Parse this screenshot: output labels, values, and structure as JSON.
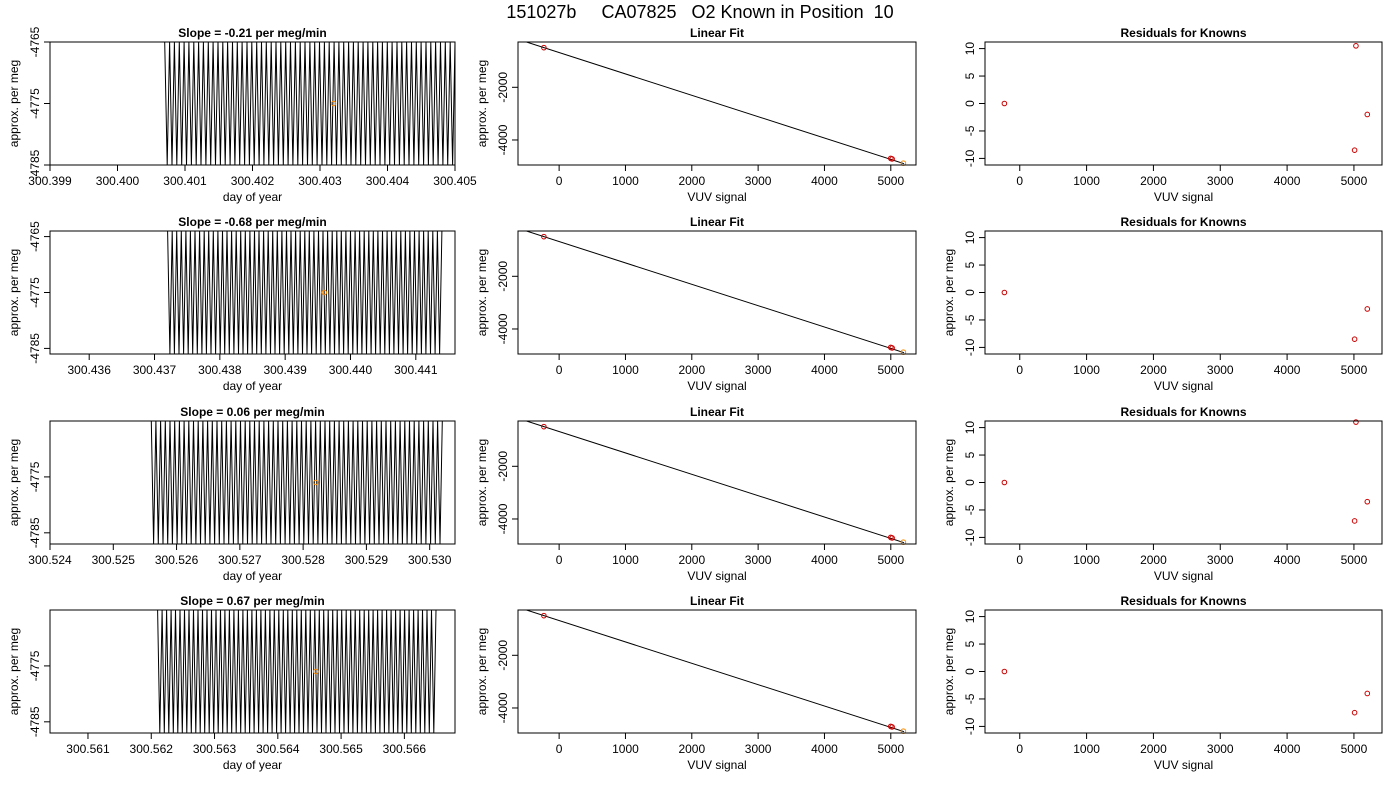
{
  "header": {
    "title": "151027b     CA07825   O2 Known in Position  10"
  },
  "chart_data": [
    {
      "panel": "row1-slope",
      "type": "line",
      "title": "Slope =  -0.21  per meg/min",
      "xlabel": "day of year",
      "ylabel": "approx. per meg",
      "xlim": [
        300.399,
        300.405
      ],
      "ylim": [
        -4785,
        -4765
      ],
      "xticks": [
        "300.399",
        "300.400",
        "300.401",
        "300.402",
        "300.403",
        "300.404",
        "300.405"
      ],
      "yticks": [
        "-4785",
        "-4775",
        "-4765"
      ],
      "trace": {
        "x_start": 300.4007,
        "x_end": 300.405,
        "cycles": 60,
        "ymin": -4785,
        "ymax": -4765
      },
      "marker": {
        "x": 300.4032,
        "y": -4775,
        "color": "#ff8c00"
      }
    },
    {
      "panel": "row1-fit",
      "type": "scatter",
      "title": "Linear Fit",
      "xlabel": "VUV signal",
      "ylabel": "approx. per meg",
      "xlim": [
        -620,
        5380
      ],
      "ylim": [
        -4950,
        -280
      ],
      "xticks": [
        "0",
        "1000",
        "2000",
        "3000",
        "4000",
        "5000"
      ],
      "yticks": [
        "-2000",
        "-4000"
      ],
      "points": [
        {
          "x": -230,
          "y": -495,
          "color": "#cc0000"
        },
        {
          "x": 5000,
          "y": -4700,
          "color": "#cc0000"
        },
        {
          "x": 5020,
          "y": -4720,
          "color": "#cc0000"
        },
        {
          "x": 5190,
          "y": -4880,
          "color": "#ff8c00"
        }
      ],
      "fit_line": [
        [
          -530,
          -250
        ],
        [
          5200,
          -4900
        ]
      ]
    },
    {
      "panel": "row1-residuals",
      "type": "scatter",
      "title": "Residuals for Knowns",
      "xlabel": "VUV signal",
      "ylabel": "",
      "xlim": [
        -520,
        5420
      ],
      "ylim": [
        -11.2,
        11.2
      ],
      "xticks": [
        "0",
        "1000",
        "2000",
        "3000",
        "4000",
        "5000"
      ],
      "yticks": [
        "-10",
        "-5",
        "0",
        "5",
        "10"
      ],
      "points": [
        {
          "x": -230,
          "y": 0.0,
          "color": "#cc0000"
        },
        {
          "x": 5030,
          "y": 10.5,
          "color": "#cc0000"
        },
        {
          "x": 5010,
          "y": -8.5,
          "color": "#cc0000"
        },
        {
          "x": 5200,
          "y": -2.0,
          "color": "#cc0000"
        }
      ]
    },
    {
      "panel": "row2-slope",
      "type": "line",
      "title": "Slope =  -0.68  per meg/min",
      "xlabel": "day of year",
      "ylabel": "approx. per meg",
      "xlim": [
        300.4354,
        300.4416
      ],
      "ylim": [
        -4786,
        -4764
      ],
      "xticks": [
        "300.436",
        "300.437",
        "300.438",
        "300.439",
        "300.440",
        "300.441"
      ],
      "yticks": [
        "-4785",
        "-4775",
        "-4765"
      ],
      "trace": {
        "x_start": 300.4372,
        "x_end": 300.4414,
        "cycles": 60,
        "ymin": -4786,
        "ymax": -4764
      },
      "marker": {
        "x": 300.4396,
        "y": -4775,
        "color": "#ff8c00"
      }
    },
    {
      "panel": "row2-fit",
      "type": "scatter",
      "title": "Linear Fit",
      "xlabel": "VUV signal",
      "ylabel": "approx. per meg",
      "xlim": [
        -620,
        5380
      ],
      "ylim": [
        -4950,
        -280
      ],
      "xticks": [
        "0",
        "1000",
        "2000",
        "3000",
        "4000",
        "5000"
      ],
      "yticks": [
        "-2000",
        "-4000"
      ],
      "points": [
        {
          "x": -230,
          "y": -495,
          "color": "#cc0000"
        },
        {
          "x": 5000,
          "y": -4700,
          "color": "#cc0000"
        },
        {
          "x": 5020,
          "y": -4720,
          "color": "#cc0000"
        },
        {
          "x": 5190,
          "y": -4880,
          "color": "#ff8c00"
        }
      ],
      "fit_line": [
        [
          -530,
          -250
        ],
        [
          5200,
          -4900
        ]
      ]
    },
    {
      "panel": "row2-residuals",
      "type": "scatter",
      "title": "Residuals for Knowns",
      "xlabel": "VUV signal",
      "ylabel": "approx. per meg",
      "xlim": [
        -520,
        5420
      ],
      "ylim": [
        -11.2,
        11.2
      ],
      "xticks": [
        "0",
        "1000",
        "2000",
        "3000",
        "4000",
        "5000"
      ],
      "yticks": [
        "-10",
        "-5",
        "0",
        "5",
        "10"
      ],
      "points": [
        {
          "x": -230,
          "y": 0.0,
          "color": "#cc0000"
        },
        {
          "x": 5010,
          "y": -8.5,
          "color": "#cc0000"
        },
        {
          "x": 5200,
          "y": -3.0,
          "color": "#cc0000"
        }
      ]
    },
    {
      "panel": "row3-slope",
      "type": "line",
      "title": "Slope =  0.06  per meg/min",
      "xlabel": "day of year",
      "ylabel": "approx. per meg",
      "xlim": [
        300.524,
        300.5304
      ],
      "ylim": [
        -4787,
        -4765
      ],
      "xticks": [
        "300.524",
        "300.525",
        "300.526",
        "300.527",
        "300.528",
        "300.529",
        "300.530"
      ],
      "yticks": [
        "-4785",
        "-4775"
      ],
      "trace": {
        "x_start": 300.5256,
        "x_end": 300.5302,
        "cycles": 62,
        "ymin": -4787,
        "ymax": -4765
      },
      "marker": {
        "x": 300.5282,
        "y": -4776,
        "color": "#ff8c00"
      }
    },
    {
      "panel": "row3-fit",
      "type": "scatter",
      "title": "Linear Fit",
      "xlabel": "VUV signal",
      "ylabel": "approx. per meg",
      "xlim": [
        -620,
        5380
      ],
      "ylim": [
        -4950,
        -280
      ],
      "xticks": [
        "0",
        "1000",
        "2000",
        "3000",
        "4000",
        "5000"
      ],
      "yticks": [
        "-2000",
        "-4000"
      ],
      "points": [
        {
          "x": -230,
          "y": -495,
          "color": "#cc0000"
        },
        {
          "x": 5000,
          "y": -4700,
          "color": "#cc0000"
        },
        {
          "x": 5020,
          "y": -4720,
          "color": "#cc0000"
        },
        {
          "x": 5190,
          "y": -4880,
          "color": "#ff8c00"
        }
      ],
      "fit_line": [
        [
          -530,
          -250
        ],
        [
          5200,
          -4900
        ]
      ]
    },
    {
      "panel": "row3-residuals",
      "type": "scatter",
      "title": "Residuals for Knowns",
      "xlabel": "VUV signal",
      "ylabel": "approx. per meg",
      "xlim": [
        -520,
        5420
      ],
      "ylim": [
        -11.2,
        11.2
      ],
      "xticks": [
        "0",
        "1000",
        "2000",
        "3000",
        "4000",
        "5000"
      ],
      "yticks": [
        "-10",
        "-5",
        "0",
        "5",
        "10"
      ],
      "points": [
        {
          "x": -230,
          "y": 0.0,
          "color": "#cc0000"
        },
        {
          "x": 5030,
          "y": 11.0,
          "color": "#cc0000"
        },
        {
          "x": 5010,
          "y": -7.0,
          "color": "#cc0000"
        },
        {
          "x": 5200,
          "y": -3.5,
          "color": "#cc0000"
        }
      ]
    },
    {
      "panel": "row4-slope",
      "type": "line",
      "title": "Slope =  0.67  per meg/min",
      "xlabel": "day of year",
      "ylabel": "approx. per meg",
      "xlim": [
        300.5604,
        300.5668
      ],
      "ylim": [
        -4787,
        -4765
      ],
      "xticks": [
        "300.561",
        "300.562",
        "300.563",
        "300.564",
        "300.565",
        "300.566"
      ],
      "yticks": [
        "-4785",
        "-4775"
      ],
      "trace": {
        "x_start": 300.5621,
        "x_end": 300.5665,
        "cycles": 62,
        "ymin": -4787,
        "ymax": -4765
      },
      "marker": {
        "x": 300.5646,
        "y": -4776,
        "color": "#ff8c00"
      }
    },
    {
      "panel": "row4-fit",
      "type": "scatter",
      "title": "Linear Fit",
      "xlabel": "VUV signal",
      "ylabel": "approx. per meg",
      "xlim": [
        -620,
        5380
      ],
      "ylim": [
        -4950,
        -280
      ],
      "xticks": [
        "0",
        "1000",
        "2000",
        "3000",
        "4000",
        "5000"
      ],
      "yticks": [
        "-2000",
        "-4000"
      ],
      "points": [
        {
          "x": -230,
          "y": -495,
          "color": "#cc0000"
        },
        {
          "x": 5000,
          "y": -4700,
          "color": "#cc0000"
        },
        {
          "x": 5020,
          "y": -4720,
          "color": "#cc0000"
        },
        {
          "x": 5190,
          "y": -4880,
          "color": "#ff8c00"
        }
      ],
      "fit_line": [
        [
          -530,
          -250
        ],
        [
          5200,
          -4900
        ]
      ]
    },
    {
      "panel": "row4-residuals",
      "type": "scatter",
      "title": "Residuals for Knowns",
      "xlabel": "VUV signal",
      "ylabel": "approx. per meg",
      "xlim": [
        -520,
        5420
      ],
      "ylim": [
        -11.2,
        11.2
      ],
      "xticks": [
        "0",
        "1000",
        "2000",
        "3000",
        "4000",
        "5000"
      ],
      "yticks": [
        "-10",
        "-5",
        "0",
        "5",
        "10"
      ],
      "points": [
        {
          "x": -230,
          "y": 0.0,
          "color": "#cc0000"
        },
        {
          "x": 5010,
          "y": -7.5,
          "color": "#cc0000"
        },
        {
          "x": 5200,
          "y": -4.0,
          "color": "#cc0000"
        }
      ]
    }
  ]
}
